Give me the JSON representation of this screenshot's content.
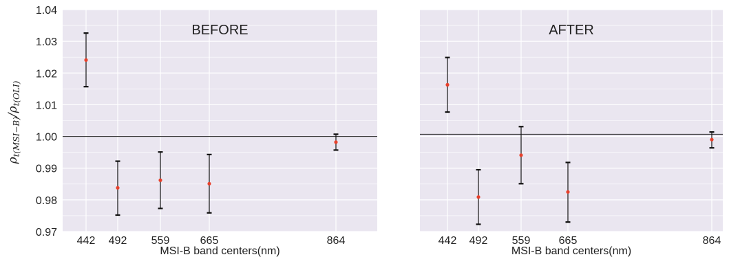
{
  "y_axis_label": "ρt(MSI−B)/ρt(OLI)",
  "chart_data": [
    {
      "type": "scatter",
      "title": "BEFORE",
      "xlabel": "MSI-B band centers(nm)",
      "ylabel": "ρt(MSI−B)/ρt(OLI)",
      "x": [
        442,
        492,
        559,
        665,
        864
      ],
      "x_ticks": [
        "442",
        "492",
        "559",
        "665",
        "864"
      ],
      "y": [
        1.0241,
        0.9838,
        0.9862,
        0.9851,
        0.9982
      ],
      "err_low": [
        1.0157,
        0.9752,
        0.9773,
        0.9759,
        0.9957
      ],
      "err_high": [
        1.0326,
        0.9922,
        0.9951,
        0.9943,
        1.0007
      ],
      "reference_line": 1.0,
      "ylim": [
        0.97,
        1.04
      ],
      "y_ticks": [
        "0.97",
        "0.98",
        "0.99",
        "1.00",
        "1.01",
        "1.02",
        "1.03",
        "1.04"
      ],
      "grid": true,
      "point_color": "#e8412c",
      "errorbar_color": "#111111",
      "background": "#eae6f0"
    },
    {
      "type": "scatter",
      "title": "AFTER",
      "xlabel": "MSI-B band centers(nm)",
      "ylabel": "",
      "x": [
        442,
        492,
        559,
        665,
        864
      ],
      "x_ticks": [
        "442",
        "492",
        "559",
        "665",
        "864"
      ],
      "y": [
        1.0163,
        0.9809,
        0.9941,
        0.9825,
        0.999
      ],
      "err_low": [
        1.0077,
        0.9723,
        0.9851,
        0.973,
        0.9964
      ],
      "err_high": [
        1.0249,
        0.9895,
        1.0031,
        0.9918,
        1.0014
      ],
      "reference_line": 1.0007,
      "ylim": [
        0.97,
        1.04
      ],
      "y_ticks": [],
      "grid": true,
      "point_color": "#e8412c",
      "errorbar_color": "#111111",
      "background": "#eae6f0"
    }
  ]
}
